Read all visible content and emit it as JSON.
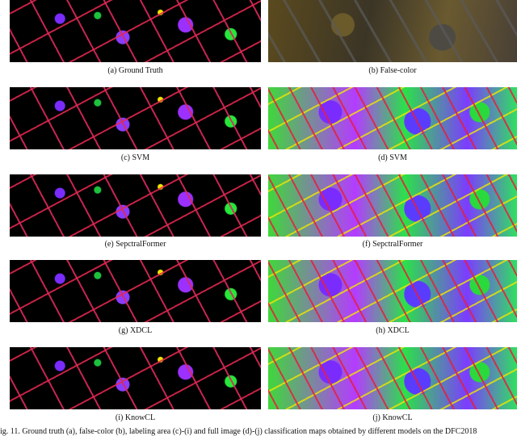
{
  "figure": {
    "panels": [
      {
        "caption": "(a) Ground Truth"
      },
      {
        "caption": "(b) False-color"
      },
      {
        "caption": "(c) SVM"
      },
      {
        "caption": "(d) SVM"
      },
      {
        "caption": "(e) SepctralFormer"
      },
      {
        "caption": "(f) SepctralFormer"
      },
      {
        "caption": "(g) XDCL"
      },
      {
        "caption": "(h) XDCL"
      },
      {
        "caption": "(i) KnowCL"
      },
      {
        "caption": "(j) KnowCL"
      }
    ],
    "caption": "ig. 11.  Ground truth (a), false-color (b), labeling area (c)-(i) and full image (d)-(j) classification maps obtained by different models on the DFC2018"
  }
}
